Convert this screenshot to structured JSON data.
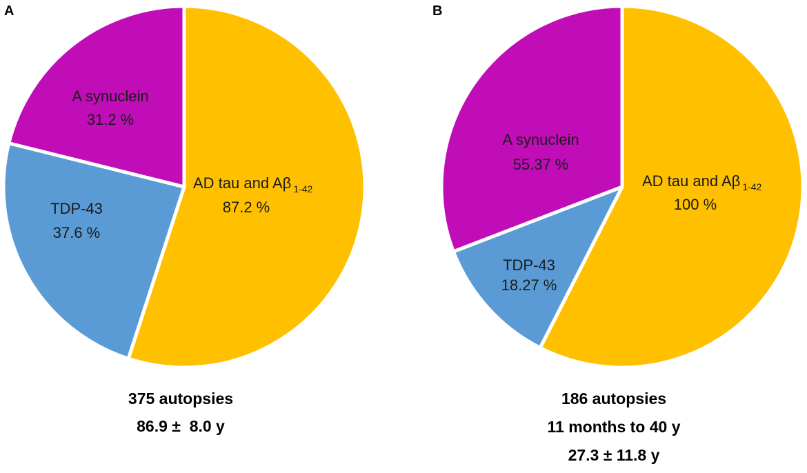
{
  "colors": {
    "ad_tau": "#FFC000",
    "tdp43": "#5B9BD5",
    "synuclein": "#C00DB8",
    "separator": "#ffffff"
  },
  "chart_data": [
    {
      "type": "pie",
      "panel_label": "A",
      "title": "",
      "slices": [
        {
          "key": "ad_tau",
          "name": "AD tau and Aβ",
          "subscript": "1-42",
          "value_text": "87.2 %",
          "value": 87.2,
          "share_deg": 198
        },
        {
          "key": "tdp43",
          "name": "TDP-43",
          "subscript": "",
          "value_text": "37.6 %",
          "value": 37.6,
          "share_deg": 86
        },
        {
          "key": "synuclein",
          "name": "A synuclein",
          "subscript": "",
          "value_text": "31.2 %",
          "value": 31.2,
          "share_deg": 76
        }
      ],
      "caption": [
        "375 autopsies",
        "86.9 ±  8.0 y"
      ]
    },
    {
      "type": "pie",
      "panel_label": "B",
      "title": "",
      "slices": [
        {
          "key": "ad_tau",
          "name": "AD tau and Aβ",
          "subscript": "1-42",
          "value_text": "100 %",
          "value": 100,
          "share_deg": 207
        },
        {
          "key": "tdp43",
          "name": "TDP-43",
          "subscript": "",
          "value_text": "18.27 %",
          "value": 18.27,
          "share_deg": 42
        },
        {
          "key": "synuclein",
          "name": "A synuclein",
          "subscript": "",
          "value_text": "55.37 %",
          "value": 55.37,
          "share_deg": 111
        }
      ],
      "caption": [
        "186 autopsies",
        "11 months to 40 y",
        "27.3 ± 11.8 y"
      ]
    }
  ]
}
